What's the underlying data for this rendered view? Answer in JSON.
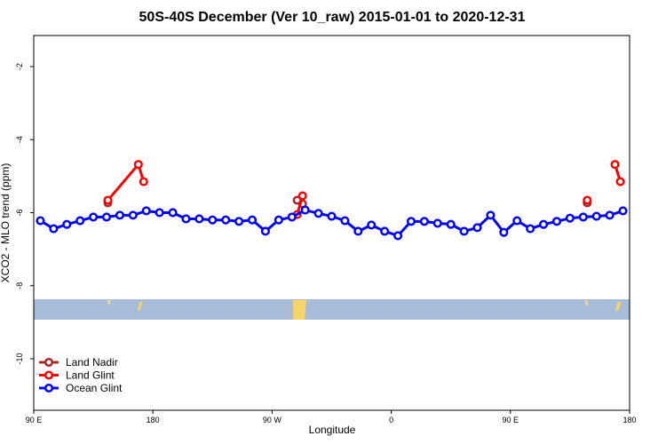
{
  "chart_data": {
    "type": "line",
    "title": "50S-40S December (Ver 10_raw)   2015-01-01 to 2020-12-31",
    "x_label": "Longitude",
    "y_label": "XCO2 - MLO trend (ppm)",
    "xlim": [
      90,
      540
    ],
    "xticks": [
      {
        "value": 90,
        "label": "90 E"
      },
      {
        "value": 180,
        "label": "180"
      },
      {
        "value": 270,
        "label": "90 W"
      },
      {
        "value": 360,
        "label": "0"
      },
      {
        "value": 450,
        "label": "90 E"
      },
      {
        "value": 540,
        "label": "180"
      }
    ],
    "ylim": [
      -11.41,
      -1.15
    ],
    "yticks": [
      -10,
      -8,
      -6,
      -4,
      -2
    ],
    "legend": "bottom-left",
    "series": [
      {
        "name": "Land Nadir",
        "color": "#a52a2a",
        "x": [
          146,
          null,
          289,
          293,
          null,
          508
        ],
        "values": [
          -5.73,
          null,
          -5.66,
          -5.76,
          null,
          -5.73
        ]
      },
      {
        "name": "Land Glint",
        "color": "#ff0000",
        "x": [
          146,
          169,
          173,
          null,
          289,
          293,
          null,
          508,
          null,
          529,
          533
        ],
        "values": [
          -5.66,
          -4.68,
          -5.15,
          null,
          -6.05,
          -5.54,
          null,
          -5.66,
          null,
          -4.68,
          -5.15
        ]
      },
      {
        "name": "Ocean Glint",
        "color": "#0000ff",
        "x": [
          95,
          105,
          115,
          125,
          135,
          145,
          155,
          165,
          175,
          185,
          195,
          205,
          215,
          225,
          235,
          245,
          255,
          265,
          275,
          285,
          295,
          305,
          315,
          325,
          335,
          345,
          355,
          365,
          375,
          385,
          395,
          405,
          415,
          425,
          435,
          445,
          455,
          465,
          475,
          485,
          495,
          505,
          515,
          525,
          535
        ],
        "values": [
          -6.22,
          -6.44,
          -6.32,
          -6.22,
          -6.12,
          -6.12,
          -6.07,
          -6.07,
          -5.95,
          -6.0,
          -6.0,
          -6.17,
          -6.17,
          -6.2,
          -6.2,
          -6.24,
          -6.2,
          -6.51,
          -6.2,
          -6.12,
          -5.93,
          -6.02,
          -6.1,
          -6.22,
          -6.51,
          -6.34,
          -6.51,
          -6.63,
          -6.24,
          -6.24,
          -6.29,
          -6.32,
          -6.51,
          -6.41,
          -6.07,
          -6.54,
          -6.22,
          -6.44,
          -6.32,
          -6.24,
          -6.15,
          -6.12,
          -6.1,
          -6.07,
          -5.95
        ]
      }
    ]
  }
}
